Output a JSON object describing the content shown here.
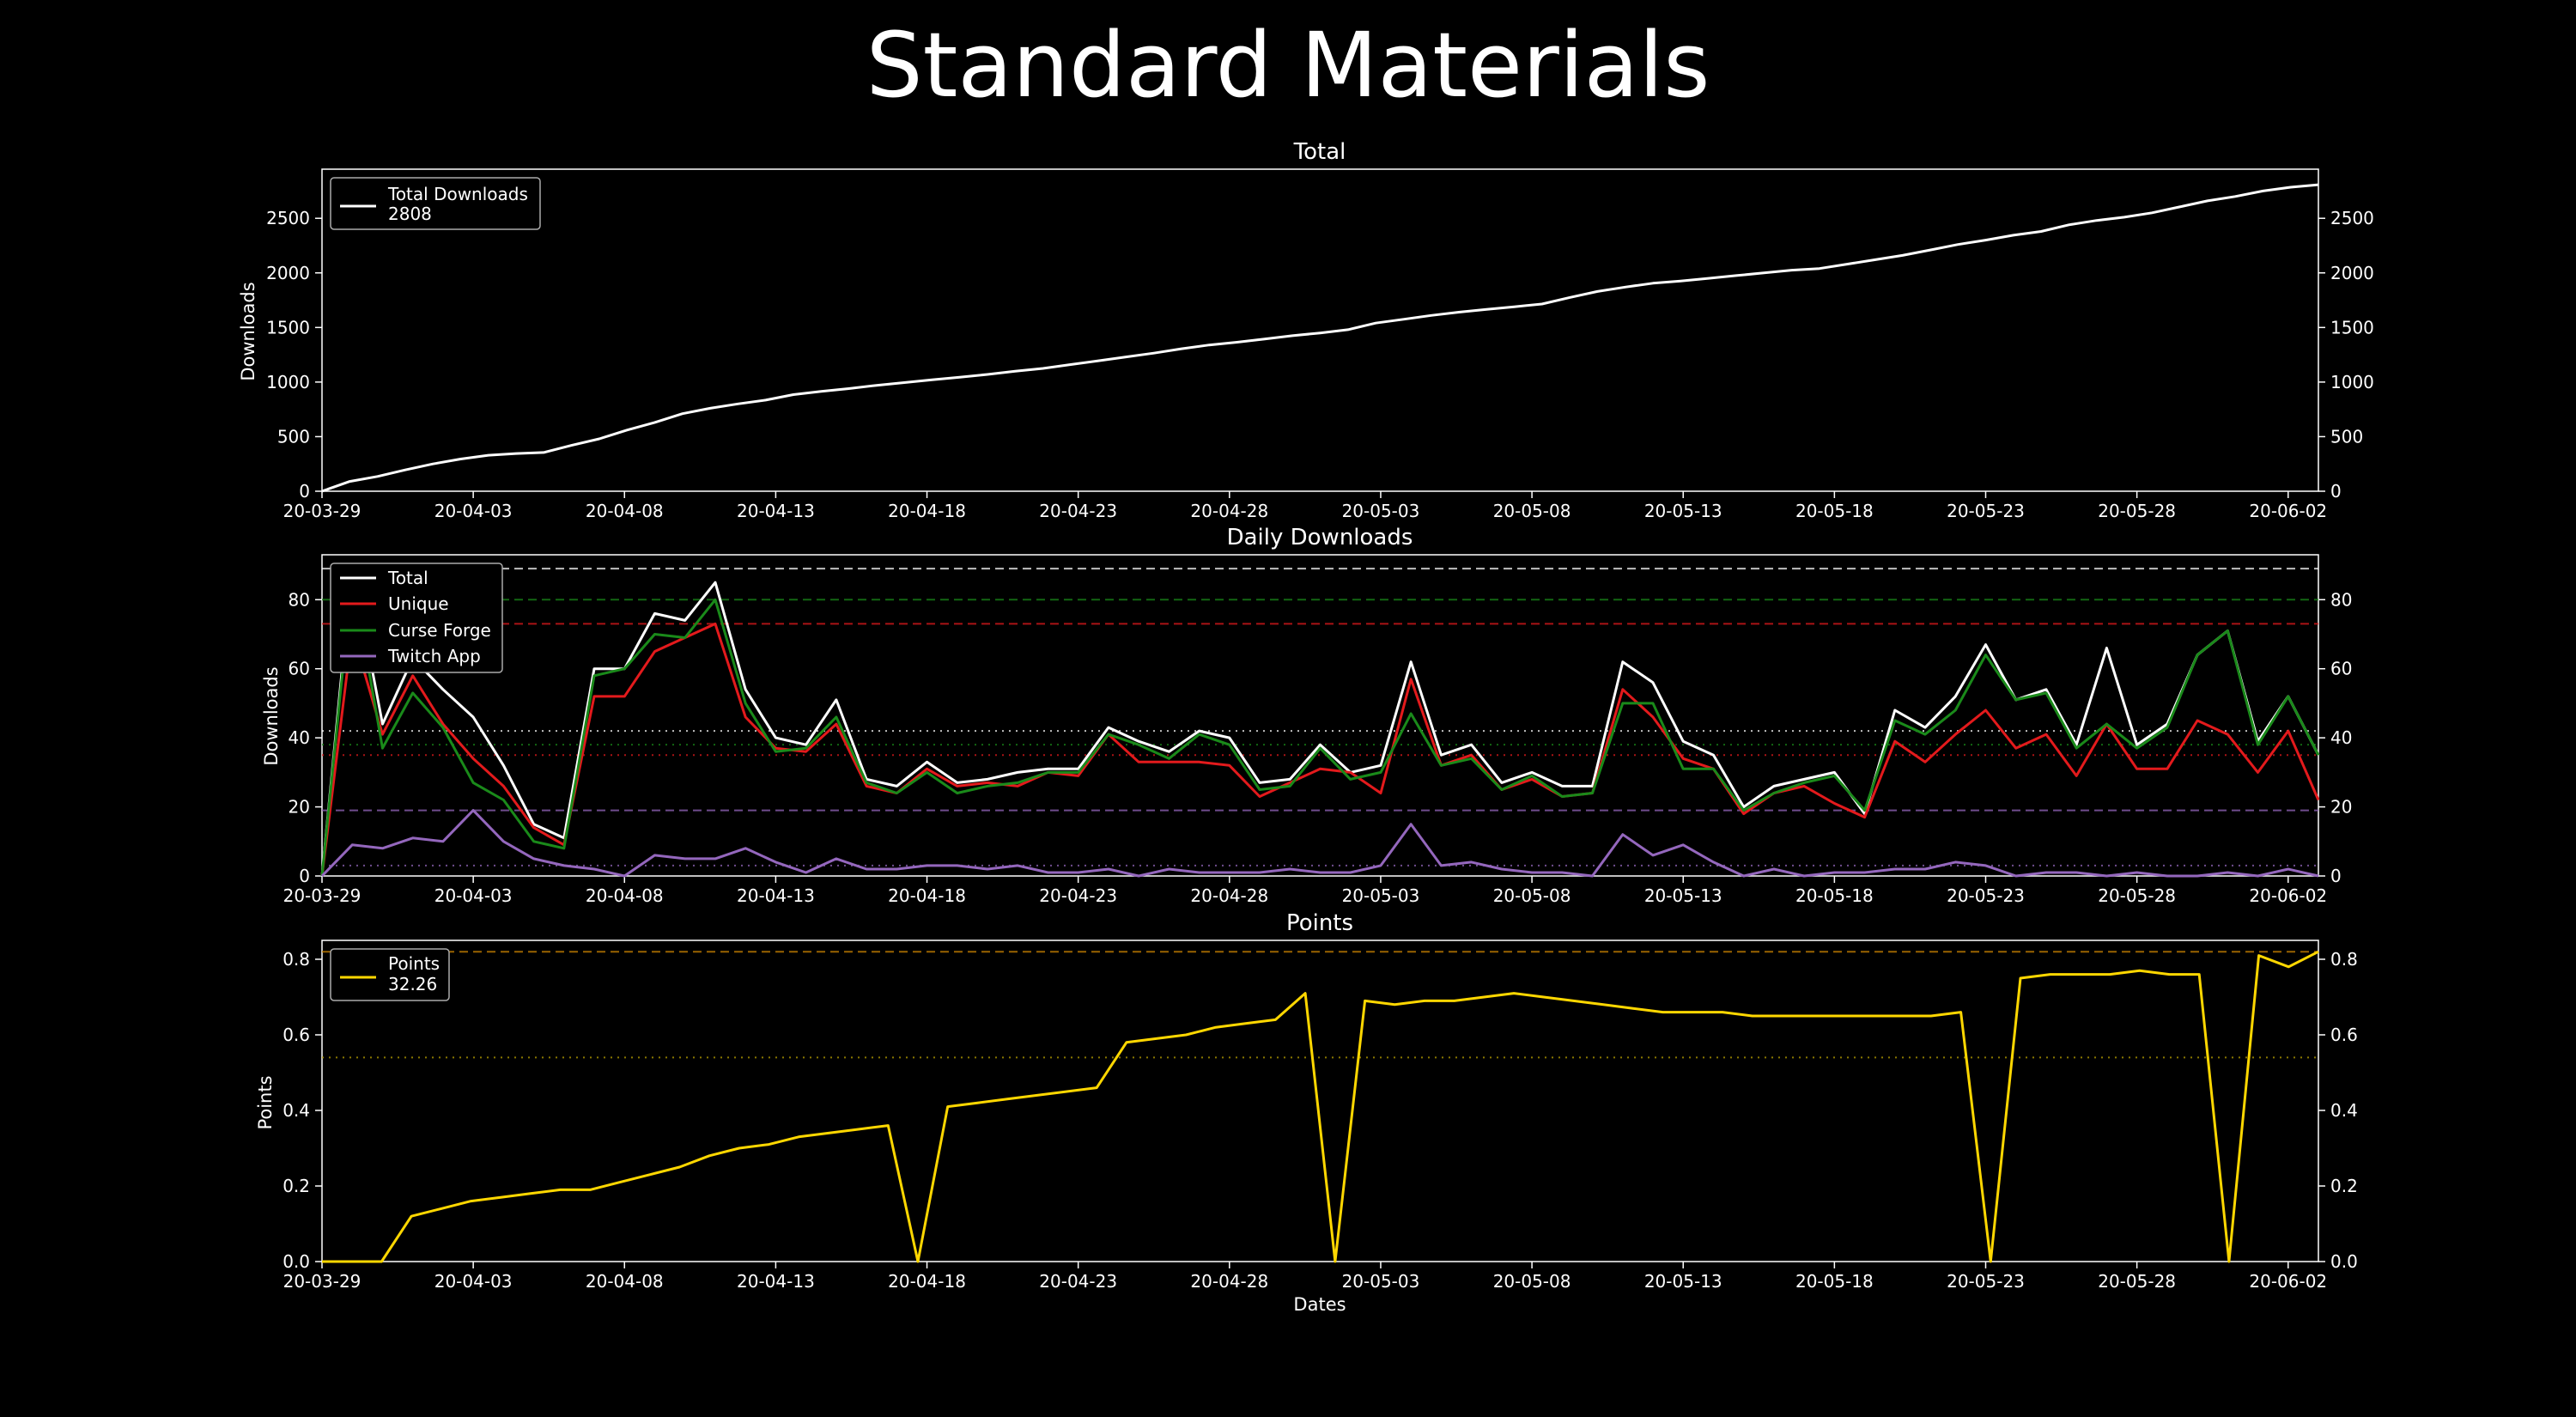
{
  "figure": {
    "title": "Standard Materials",
    "background": "#000000",
    "foreground": "#ffffff"
  },
  "x_ticks": [
    "20-03-29",
    "20-04-03",
    "20-04-08",
    "20-04-13",
    "20-04-18",
    "20-04-23",
    "20-04-28",
    "20-05-03",
    "20-05-08",
    "20-05-13",
    "20-05-18",
    "20-05-23",
    "20-05-28",
    "20-06-02"
  ],
  "chart_data": [
    {
      "type": "line",
      "title": "Total",
      "ylabel": "Downloads",
      "xlabel": "",
      "x_start": "2020-03-29",
      "x_end": "2020-06-03",
      "ylim": [
        0,
        2950
      ],
      "yticks": [
        0,
        500,
        1000,
        1500,
        2000,
        2500
      ],
      "grid": false,
      "legend_position": "top-left",
      "legend": [
        {
          "label": "Total Downloads",
          "value_label": "2808",
          "color": "#ffffff"
        }
      ],
      "series": [
        {
          "name": "Total Downloads",
          "color": "#ffffff",
          "values": [
            0,
            90,
            135,
            195,
            250,
            295,
            330,
            345,
            355,
            420,
            480,
            560,
            630,
            710,
            760,
            800,
            835,
            885,
            915,
            940,
            970,
            995,
            1020,
            1045,
            1070,
            1100,
            1125,
            1160,
            1195,
            1230,
            1265,
            1305,
            1340,
            1365,
            1395,
            1425,
            1450,
            1480,
            1540,
            1575,
            1610,
            1640,
            1665,
            1690,
            1715,
            1775,
            1830,
            1870,
            1905,
            1925,
            1950,
            1975,
            2000,
            2025,
            2040,
            2080,
            2120,
            2160,
            2210,
            2260,
            2300,
            2345,
            2380,
            2440,
            2480,
            2510,
            2550,
            2605,
            2660,
            2700,
            2750,
            2785,
            2808
          ]
        }
      ]
    },
    {
      "type": "line",
      "title": "Daily Downloads",
      "ylabel": "Downloads",
      "xlabel": "",
      "x_start": "2020-03-29",
      "x_end": "2020-06-03",
      "ylim": [
        0,
        93
      ],
      "yticks": [
        0,
        20,
        40,
        60,
        80
      ],
      "grid": false,
      "legend_position": "top-left",
      "series": [
        {
          "name": "Total",
          "color": "#ffffff",
          "values": [
            0,
            90,
            44,
            63,
            54,
            46,
            32,
            15,
            11,
            60,
            60,
            76,
            74,
            85,
            54,
            40,
            38,
            51,
            28,
            26,
            33,
            27,
            28,
            30,
            31,
            31,
            43,
            39,
            36,
            42,
            40,
            27,
            28,
            38,
            30,
            32,
            62,
            35,
            38,
            27,
            30,
            26,
            26,
            62,
            56,
            39,
            35,
            20,
            26,
            28,
            30,
            18,
            48,
            43,
            52,
            67,
            51,
            54,
            38,
            66,
            38,
            44,
            64,
            71,
            39,
            52,
            35
          ]
        },
        {
          "name": "Unique",
          "color": "#e31a1c",
          "values": [
            0,
            71,
            41,
            58,
            44,
            34,
            26,
            14,
            9,
            52,
            52,
            65,
            69,
            73,
            46,
            37,
            36,
            44,
            26,
            24,
            31,
            26,
            27,
            26,
            30,
            29,
            41,
            33,
            33,
            33,
            32,
            23,
            27,
            31,
            30,
            24,
            57,
            32,
            35,
            25,
            28,
            23,
            24,
            54,
            46,
            34,
            31,
            18,
            24,
            26,
            21,
            17,
            39,
            33,
            41,
            48,
            37,
            41,
            29,
            44,
            31,
            31,
            45,
            41,
            30,
            42,
            22
          ]
        },
        {
          "name": "Curse Forge",
          "color": "#1a8a1a",
          "values": [
            0,
            87,
            37,
            53,
            43,
            27,
            22,
            10,
            8,
            58,
            60,
            70,
            69,
            80,
            50,
            36,
            37,
            46,
            27,
            24,
            30,
            24,
            26,
            27,
            30,
            30,
            41,
            38,
            34,
            41,
            38,
            25,
            26,
            37,
            28,
            30,
            47,
            32,
            34,
            25,
            29,
            23,
            24,
            50,
            50,
            31,
            31,
            19,
            24,
            27,
            29,
            19,
            45,
            41,
            48,
            64,
            51,
            53,
            37,
            44,
            37,
            43,
            64,
            71,
            38,
            52,
            35
          ]
        },
        {
          "name": "Twitch App",
          "color": "#9467bd",
          "values": [
            0,
            9,
            8,
            11,
            10,
            19,
            10,
            5,
            3,
            2,
            0,
            6,
            5,
            5,
            8,
            4,
            1,
            5,
            2,
            2,
            3,
            3,
            2,
            3,
            1,
            1,
            2,
            0,
            2,
            1,
            1,
            1,
            2,
            1,
            1,
            3,
            15,
            3,
            4,
            2,
            1,
            1,
            0,
            12,
            6,
            9,
            4,
            0,
            2,
            0,
            1,
            1,
            2,
            2,
            4,
            3,
            0,
            1,
            1,
            0,
            1,
            0,
            0,
            1,
            0,
            2,
            0
          ]
        }
      ],
      "reference_lines": [
        {
          "series": "Total",
          "style": "dashed",
          "value": 89
        },
        {
          "series": "Curse Forge",
          "style": "dashed",
          "value": 80
        },
        {
          "series": "Unique",
          "style": "dashed",
          "value": 73
        },
        {
          "series": "Total",
          "style": "dotted",
          "value": 42
        },
        {
          "series": "Curse Forge",
          "style": "dotted",
          "value": 38
        },
        {
          "series": "Unique",
          "style": "dotted",
          "value": 35
        },
        {
          "series": "Twitch App",
          "style": "dashed",
          "value": 19
        },
        {
          "series": "Twitch App",
          "style": "dotted",
          "value": 3
        }
      ]
    },
    {
      "type": "line",
      "title": "Points",
      "ylabel": "Points",
      "xlabel": "Dates",
      "x_start": "2020-03-29",
      "x_end": "2020-06-03",
      "ylim": [
        0,
        0.85
      ],
      "yticks": [
        0.0,
        0.2,
        0.4,
        0.6,
        0.8
      ],
      "grid": false,
      "legend_position": "top-left",
      "legend": [
        {
          "label": "Points",
          "value_label": "32.26",
          "color": "#ffd700"
        }
      ],
      "series": [
        {
          "name": "Points",
          "color": "#ffd700",
          "values": [
            0,
            0,
            0,
            0.12,
            0.14,
            0.16,
            0.17,
            0.18,
            0.19,
            0.19,
            0.21,
            0.23,
            0.25,
            0.28,
            0.3,
            0.31,
            0.33,
            0.34,
            0.35,
            0.36,
            0,
            0.41,
            0.42,
            0.43,
            0.44,
            0.45,
            0.46,
            0.58,
            0.59,
            0.6,
            0.62,
            0.63,
            0.64,
            0.71,
            0,
            0.69,
            0.68,
            0.69,
            0.69,
            0.7,
            0.71,
            0.7,
            0.69,
            0.68,
            0.67,
            0.66,
            0.66,
            0.66,
            0.65,
            0.65,
            0.65,
            0.65,
            0.65,
            0.65,
            0.65,
            0.66,
            0,
            0.75,
            0.76,
            0.76,
            0.76,
            0.77,
            0.76,
            0.76,
            0,
            0.81,
            0.78,
            0.82
          ]
        }
      ],
      "reference_lines": [
        {
          "series": "Points",
          "style": "dashed",
          "value": 0.82,
          "color": "#cc8400"
        },
        {
          "series": "Points",
          "style": "dotted",
          "value": 0.54,
          "color": "#b8a000"
        }
      ]
    }
  ]
}
